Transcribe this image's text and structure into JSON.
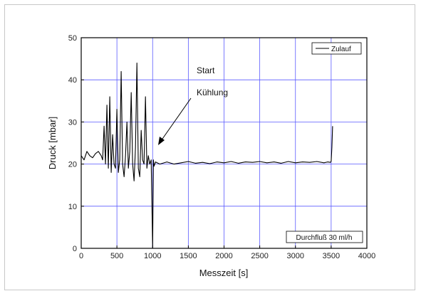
{
  "chart_data": {
    "type": "line",
    "xlabel": "Messzeit [s]",
    "ylabel": "Druck [mbar]",
    "xlim": [
      0,
      4000
    ],
    "ylim": [
      0,
      50
    ],
    "xticks": [
      0,
      500,
      1000,
      1500,
      2000,
      2500,
      3000,
      3500,
      4000
    ],
    "yticks": [
      0,
      10,
      20,
      30,
      40,
      50
    ],
    "grid": true,
    "legend_position": "top-right",
    "series": [
      {
        "name": "Zulauf",
        "color": "#000000",
        "x": [
          0,
          40,
          80,
          120,
          160,
          200,
          240,
          280,
          300,
          320,
          340,
          360,
          380,
          400,
          420,
          440,
          460,
          480,
          500,
          520,
          540,
          560,
          580,
          600,
          620,
          640,
          660,
          680,
          700,
          720,
          740,
          760,
          780,
          800,
          820,
          840,
          860,
          880,
          900,
          920,
          940,
          960,
          980,
          1000,
          1010,
          1020,
          1040,
          1100,
          1200,
          1300,
          1400,
          1500,
          1600,
          1700,
          1800,
          1900,
          2000,
          2100,
          2200,
          2300,
          2400,
          2500,
          2600,
          2700,
          2800,
          2900,
          3000,
          3100,
          3200,
          3300,
          3400,
          3450,
          3490,
          3500,
          3510,
          3520
        ],
        "y": [
          22,
          21,
          23,
          22,
          21.5,
          22.5,
          23,
          22,
          21,
          29,
          20,
          34,
          19,
          36,
          18,
          27,
          20,
          19,
          33,
          18,
          21,
          42,
          20,
          17,
          22,
          30,
          19,
          23,
          37,
          20,
          16,
          24,
          44,
          19,
          17,
          28,
          21,
          20,
          36,
          19,
          22,
          20,
          21,
          0,
          21,
          19.5,
          20.5,
          20,
          20.5,
          20,
          20.3,
          20.6,
          20.2,
          20.4,
          20.1,
          20.5,
          20.3,
          20.6,
          20.2,
          20.5,
          20.4,
          20.6,
          20.3,
          20.5,
          20.2,
          20.6,
          20.3,
          20.5,
          20.4,
          20.6,
          20.3,
          20.5,
          20.4,
          20.7,
          24,
          29
        ]
      }
    ],
    "annotations": [
      {
        "line1": "Start",
        "line2": "Kühlung"
      }
    ],
    "info_box": "Durchfluß 30 ml/h"
  }
}
